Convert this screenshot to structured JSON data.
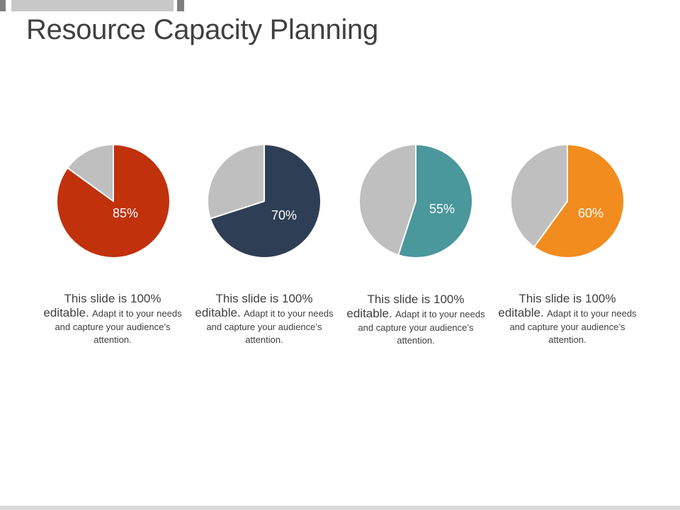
{
  "slide": {
    "title": "Resource Capacity Planning"
  },
  "colors": {
    "remainder": "#bfbfbf",
    "separator": "#ffffff"
  },
  "chart_data": [
    {
      "type": "pie",
      "values": [
        85,
        15
      ],
      "colors": [
        "#c0310c",
        "#bfbfbf"
      ],
      "label": "85%",
      "caption": {
        "lead_1": "This slide is 100%",
        "lead_2": "editable.",
        "body": "Adapt it to your needs and capture your audience’s attention."
      }
    },
    {
      "type": "pie",
      "values": [
        70,
        30
      ],
      "colors": [
        "#2e3e54",
        "#bfbfbf"
      ],
      "label": "70%",
      "caption": {
        "lead_1": "This slide is 100%",
        "lead_2": "editable.",
        "body": "Adapt it to your needs and capture your audience’s attention."
      }
    },
    {
      "type": "pie",
      "values": [
        55,
        45
      ],
      "colors": [
        "#4a979c",
        "#bfbfbf"
      ],
      "label": "55%",
      "caption": {
        "lead_1": "This slide is 100%",
        "lead_2": "editable.",
        "body": "Adapt it to your needs and capture your audience’s attention."
      }
    },
    {
      "type": "pie",
      "values": [
        60,
        40
      ],
      "colors": [
        "#f28c1e",
        "#bfbfbf"
      ],
      "label": "60%",
      "caption": {
        "lead_1": "This slide is 100%",
        "lead_2": "editable.",
        "body": "Adapt it to your needs and capture your audience’s attention."
      }
    }
  ]
}
